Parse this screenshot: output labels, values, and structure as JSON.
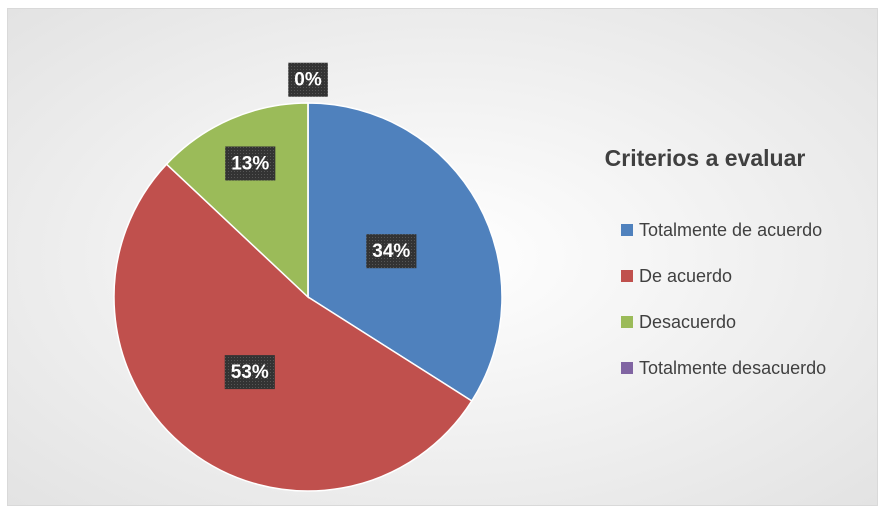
{
  "chart_data": {
    "type": "pie",
    "title": "Criterios a evaluar",
    "categories": [
      "Totalmente de acuerdo",
      "De acuerdo",
      "Desacuerdo",
      "Totalmente desacuerdo"
    ],
    "values": [
      34,
      53,
      13,
      0
    ],
    "value_labels": [
      "34%",
      "53%",
      "13%",
      "0%"
    ],
    "colors": [
      "#4f81bd",
      "#c0504d",
      "#9bbb59",
      "#8064a2"
    ],
    "legend": "right"
  }
}
